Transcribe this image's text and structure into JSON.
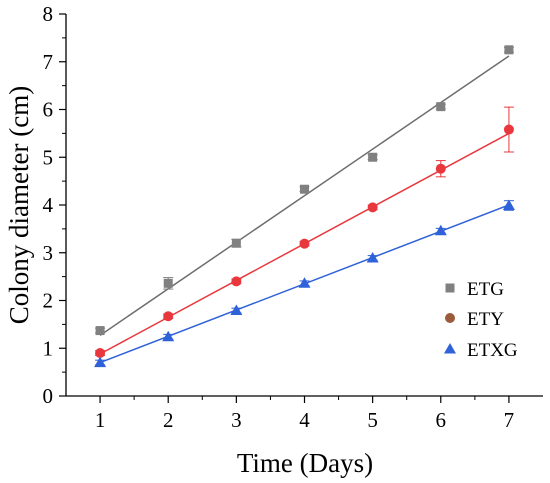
{
  "chart_data": {
    "type": "scatter",
    "title": "",
    "xlabel": "Time (Days)",
    "ylabel": "Colony diameter (cm)",
    "xlim": [
      0.5,
      7.5
    ],
    "ylim": [
      0,
      8
    ],
    "xticks": [
      "1",
      "2",
      "3",
      "4",
      "5",
      "6",
      "7"
    ],
    "yticks": [
      "0",
      "1",
      "2",
      "3",
      "4",
      "5",
      "6",
      "7",
      "8"
    ],
    "grid": false,
    "legend_position": "bottom-right",
    "series": [
      {
        "name": "ETG",
        "marker": "square",
        "color": "#808080",
        "line_color": "#6e6e6e",
        "x": [
          1,
          2,
          3,
          4,
          5,
          6,
          7
        ],
        "y": [
          1.37,
          2.36,
          3.2,
          4.33,
          5.0,
          6.06,
          7.25
        ],
        "err": [
          0.05,
          0.12,
          0.08,
          0.05,
          0.05,
          0.05,
          0.05
        ],
        "fit": [
          [
            1,
            1.27
          ],
          [
            7,
            7.12
          ]
        ]
      },
      {
        "name": "ETY",
        "marker": "circle",
        "color": "#e8383d",
        "legend_color": "#9c5a3c",
        "line_color": "#e8383d",
        "x": [
          1,
          2,
          3,
          4,
          5,
          6,
          7
        ],
        "y": [
          0.9,
          1.67,
          2.4,
          3.19,
          3.95,
          4.76,
          5.58
        ],
        "err": [
          0.05,
          0.05,
          0.05,
          0.05,
          0.05,
          0.17,
          0.47
        ],
        "fit": [
          [
            1,
            0.88
          ],
          [
            7,
            5.5
          ]
        ]
      },
      {
        "name": "ETXG",
        "marker": "triangle",
        "color": "#2f62d8",
        "line_color": "#2f62d8",
        "x": [
          1,
          2,
          3,
          4,
          5,
          6,
          7
        ],
        "y": [
          0.7,
          1.24,
          1.79,
          2.36,
          2.89,
          3.46,
          3.99
        ],
        "err": [
          0.05,
          0.05,
          0.05,
          0.05,
          0.05,
          0.05,
          0.1
        ],
        "fit": [
          [
            1,
            0.7
          ],
          [
            7,
            4.0
          ]
        ]
      }
    ]
  }
}
